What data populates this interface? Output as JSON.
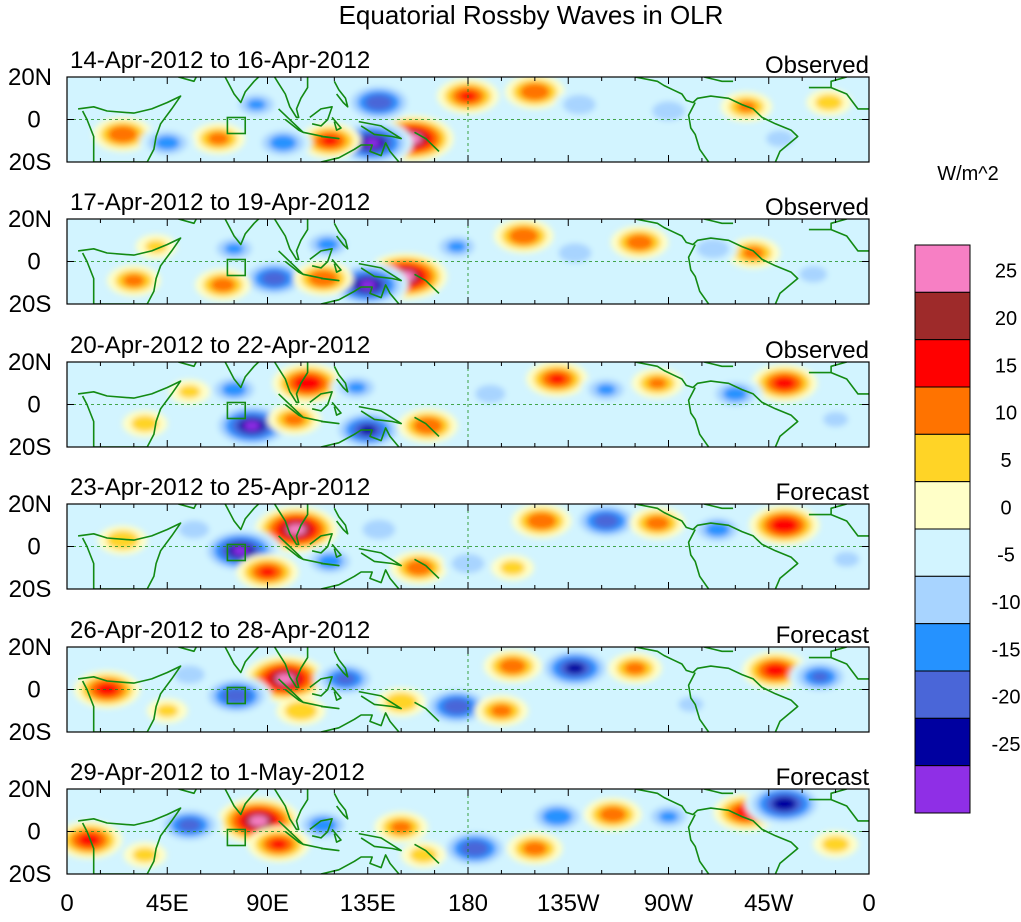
{
  "chart_data": {
    "type": "heatmap",
    "title": "Equatorial Rossby Waves in OLR",
    "units": "W/m^2",
    "lat_range": [
      -20,
      20
    ],
    "lon_range": [
      0,
      360
    ],
    "lat_ticks": [
      "20N",
      "0",
      "20S"
    ],
    "lon_ticks": [
      "0",
      "45E",
      "90E",
      "135E",
      "180",
      "135W",
      "90W",
      "45W",
      "0"
    ],
    "colorbar": {
      "labels": [
        "25",
        "20",
        "15",
        "10",
        "5",
        "0",
        "-5",
        "-10",
        "-15",
        "-20",
        "-25"
      ],
      "colors": [
        "#f77fc4",
        "#9e2a2a",
        "#ff0000",
        "#ff7300",
        "#ffd426",
        "#ffffc8",
        "#d2f4ff",
        "#a8d4ff",
        "#2592ff",
        "#4a66d8",
        "#0000a0",
        "#8f2fe6"
      ]
    },
    "panels": [
      {
        "date_range": "14-Apr-2012 to 16-Apr-2012",
        "status": "Observed",
        "anomalies": [
          {
            "lon": 155,
            "lat": -9,
            "value": 28
          },
          {
            "lon": 137,
            "lat": -11,
            "value": -27
          },
          {
            "lon": 118,
            "lat": -10,
            "value": 18
          },
          {
            "lon": 25,
            "lat": -7,
            "value": 17
          },
          {
            "lon": 68,
            "lat": -9,
            "value": 14
          },
          {
            "lon": 140,
            "lat": 8,
            "value": -22
          },
          {
            "lon": 180,
            "lat": 11,
            "value": 18
          },
          {
            "lon": 210,
            "lat": 13,
            "value": 17
          },
          {
            "lon": 305,
            "lat": 6,
            "value": 13
          },
          {
            "lon": 97,
            "lat": -11,
            "value": -16
          },
          {
            "lon": 45,
            "lat": -11,
            "value": -15
          },
          {
            "lon": 85,
            "lat": 7,
            "value": -13
          },
          {
            "lon": 230,
            "lat": 7,
            "value": -12
          },
          {
            "lon": 270,
            "lat": 4,
            "value": -12
          },
          {
            "lon": 342,
            "lat": 8,
            "value": 10
          },
          {
            "lon": 320,
            "lat": -9,
            "value": -10
          }
        ]
      },
      {
        "date_range": "17-Apr-2012 to 19-Apr-2012",
        "status": "Observed",
        "anomalies": [
          {
            "lon": 152,
            "lat": -7,
            "value": 28
          },
          {
            "lon": 135,
            "lat": -11,
            "value": -27
          },
          {
            "lon": 93,
            "lat": -8,
            "value": -21
          },
          {
            "lon": 115,
            "lat": -8,
            "value": 17
          },
          {
            "lon": 70,
            "lat": -11,
            "value": 15
          },
          {
            "lon": 205,
            "lat": 12,
            "value": 17
          },
          {
            "lon": 257,
            "lat": 9,
            "value": 16
          },
          {
            "lon": 308,
            "lat": 4,
            "value": 14
          },
          {
            "lon": 117,
            "lat": 8,
            "value": -14
          },
          {
            "lon": 30,
            "lat": -9,
            "value": 14
          },
          {
            "lon": 75,
            "lat": 6,
            "value": -13
          },
          {
            "lon": 175,
            "lat": 7,
            "value": -13
          },
          {
            "lon": 228,
            "lat": 4,
            "value": -12
          },
          {
            "lon": 290,
            "lat": 6,
            "value": -12
          },
          {
            "lon": 335,
            "lat": -6,
            "value": -10
          },
          {
            "lon": 40,
            "lat": 7,
            "value": 8
          }
        ]
      },
      {
        "date_range": "20-Apr-2012 to 22-Apr-2012",
        "status": "Observed",
        "anomalies": [
          {
            "lon": 83,
            "lat": -10,
            "value": -27
          },
          {
            "lon": 135,
            "lat": -12,
            "value": -23
          },
          {
            "lon": 108,
            "lat": 10,
            "value": 22
          },
          {
            "lon": 162,
            "lat": -10,
            "value": 17
          },
          {
            "lon": 102,
            "lat": -7,
            "value": 14
          },
          {
            "lon": 220,
            "lat": 12,
            "value": 18
          },
          {
            "lon": 322,
            "lat": 10,
            "value": 20
          },
          {
            "lon": 265,
            "lat": 10,
            "value": 13
          },
          {
            "lon": 75,
            "lat": 7,
            "value": -15
          },
          {
            "lon": 130,
            "lat": 8,
            "value": -13
          },
          {
            "lon": 242,
            "lat": 7,
            "value": -13
          },
          {
            "lon": 300,
            "lat": 5,
            "value": -15
          },
          {
            "lon": 190,
            "lat": 5,
            "value": -11
          },
          {
            "lon": 35,
            "lat": -9,
            "value": 10
          },
          {
            "lon": 55,
            "lat": 6,
            "value": 8
          },
          {
            "lon": 345,
            "lat": -7,
            "value": -9
          }
        ]
      },
      {
        "date_range": "23-Apr-2012 to 25-Apr-2012",
        "status": "Forecast",
        "anomalies": [
          {
            "lon": 103,
            "lat": 8,
            "value": 28
          },
          {
            "lon": 78,
            "lat": -2,
            "value": -27
          },
          {
            "lon": 90,
            "lat": -12,
            "value": 18
          },
          {
            "lon": 118,
            "lat": -7,
            "value": -15
          },
          {
            "lon": 158,
            "lat": -10,
            "value": 16
          },
          {
            "lon": 213,
            "lat": 12,
            "value": 17
          },
          {
            "lon": 242,
            "lat": 12,
            "value": -21
          },
          {
            "lon": 322,
            "lat": 10,
            "value": 22
          },
          {
            "lon": 265,
            "lat": 11,
            "value": 15
          },
          {
            "lon": 292,
            "lat": 8,
            "value": -15
          },
          {
            "lon": 180,
            "lat": -8,
            "value": -12
          },
          {
            "lon": 140,
            "lat": 8,
            "value": -12
          },
          {
            "lon": 25,
            "lat": 3,
            "value": 12
          },
          {
            "lon": 57,
            "lat": 8,
            "value": -11
          },
          {
            "lon": 350,
            "lat": -6,
            "value": -9
          },
          {
            "lon": 200,
            "lat": -10,
            "value": 9
          }
        ]
      },
      {
        "date_range": "26-Apr-2012 to 28-Apr-2012",
        "status": "Forecast",
        "anomalies": [
          {
            "lon": 98,
            "lat": 5,
            "value": 28
          },
          {
            "lon": 76,
            "lat": -3,
            "value": -22
          },
          {
            "lon": 125,
            "lat": 5,
            "value": -19
          },
          {
            "lon": 18,
            "lat": 0,
            "value": 20
          },
          {
            "lon": 228,
            "lat": 10,
            "value": -24
          },
          {
            "lon": 200,
            "lat": 11,
            "value": 16
          },
          {
            "lon": 318,
            "lat": 9,
            "value": 20
          },
          {
            "lon": 338,
            "lat": 6,
            "value": -18
          },
          {
            "lon": 255,
            "lat": 10,
            "value": 14
          },
          {
            "lon": 175,
            "lat": -8,
            "value": -22
          },
          {
            "lon": 195,
            "lat": -10,
            "value": 14
          },
          {
            "lon": 150,
            "lat": -6,
            "value": 12
          },
          {
            "lon": 55,
            "lat": 7,
            "value": -11
          },
          {
            "lon": 105,
            "lat": -10,
            "value": 12
          },
          {
            "lon": 280,
            "lat": -7,
            "value": -9
          },
          {
            "lon": 45,
            "lat": -10,
            "value": 8
          }
        ]
      },
      {
        "date_range": "29-Apr-2012 to 1-May-2012",
        "status": "Forecast",
        "anomalies": [
          {
            "lon": 86,
            "lat": 5,
            "value": 28
          },
          {
            "lon": 55,
            "lat": 3,
            "value": -20
          },
          {
            "lon": 115,
            "lat": 3,
            "value": -16
          },
          {
            "lon": 95,
            "lat": -6,
            "value": 18
          },
          {
            "lon": 10,
            "lat": -4,
            "value": 20
          },
          {
            "lon": 183,
            "lat": -8,
            "value": -22
          },
          {
            "lon": 210,
            "lat": -8,
            "value": 15
          },
          {
            "lon": 150,
            "lat": 2,
            "value": 14
          },
          {
            "lon": 220,
            "lat": 7,
            "value": -17
          },
          {
            "lon": 245,
            "lat": 8,
            "value": 16
          },
          {
            "lon": 305,
            "lat": 9,
            "value": 20
          },
          {
            "lon": 322,
            "lat": 13,
            "value": -26
          },
          {
            "lon": 270,
            "lat": 7,
            "value": -13
          },
          {
            "lon": 345,
            "lat": -6,
            "value": 10
          },
          {
            "lon": 160,
            "lat": -11,
            "value": 10
          },
          {
            "lon": 35,
            "lat": -11,
            "value": 9
          }
        ]
      }
    ]
  }
}
